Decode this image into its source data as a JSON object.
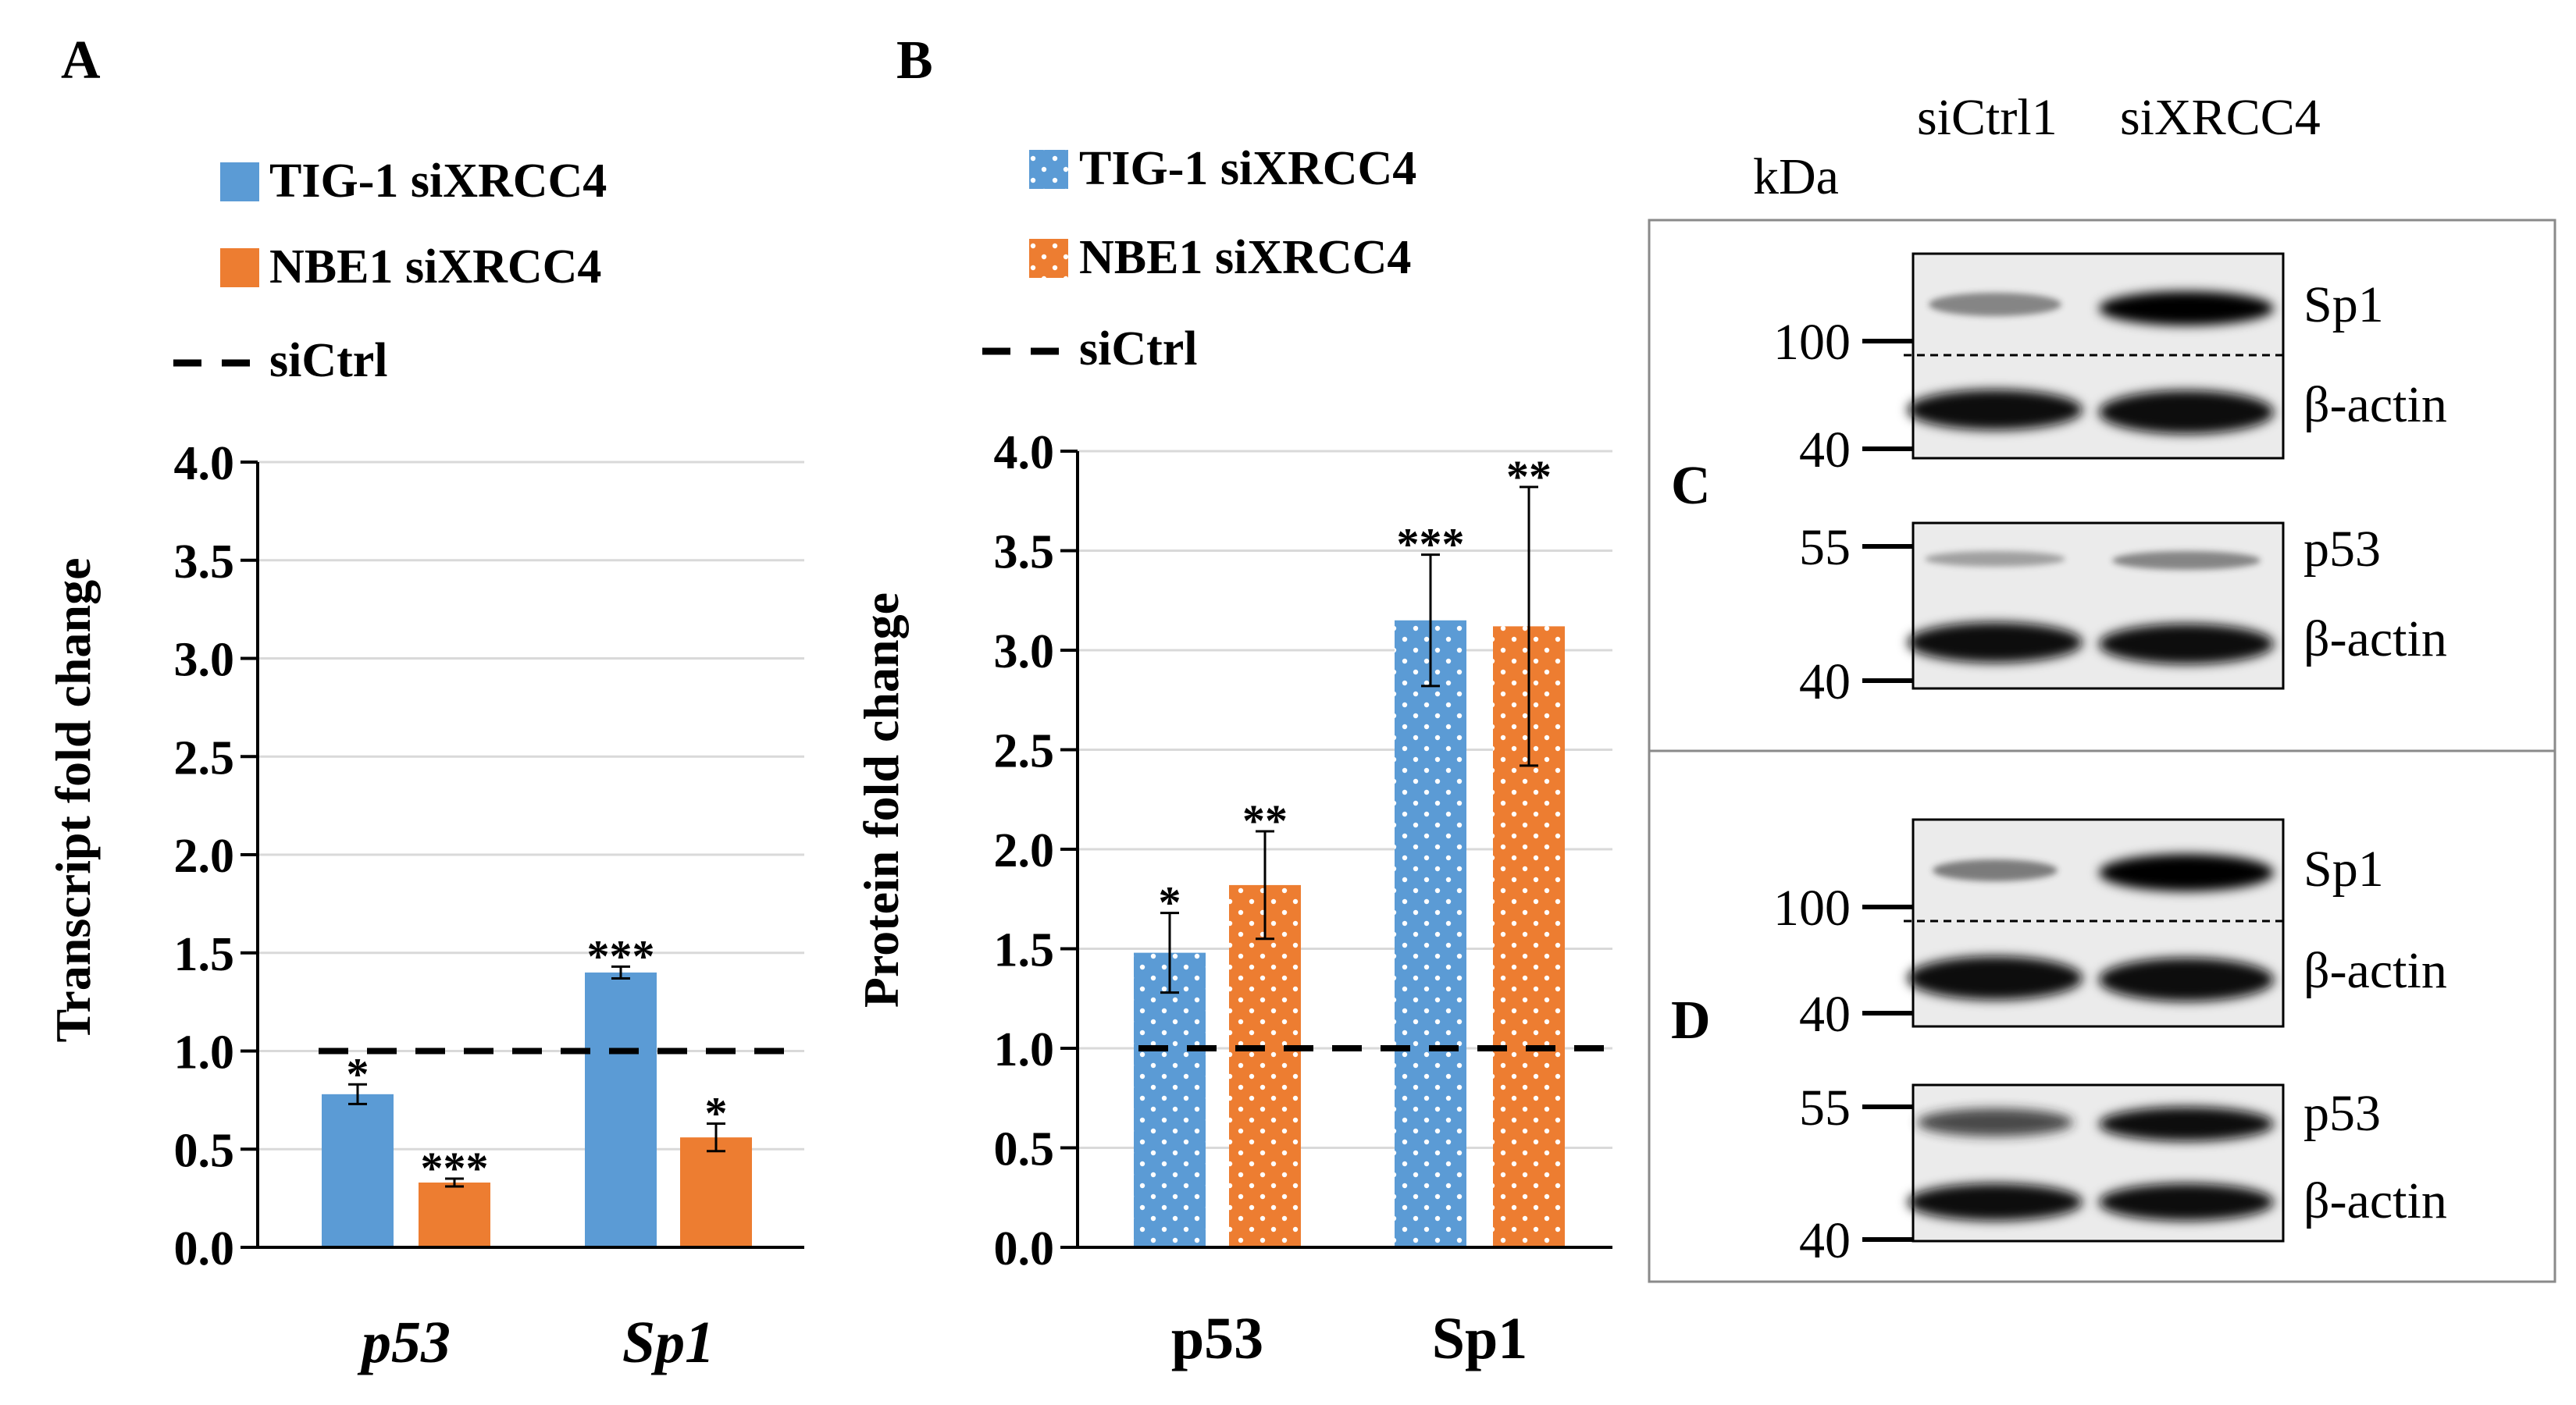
{
  "colors": {
    "tig": "#5b9bd5",
    "nbe": "#ed7d31",
    "grid": "#d9d9d9",
    "axis": "#000000",
    "blot_bg": "#e8e8e8",
    "band": "#111111"
  },
  "chart_data": [
    {
      "panel": "A",
      "type": "bar",
      "ylabel": "Transcript fold change",
      "ylim": [
        0,
        4
      ],
      "yticks": [
        "0.0",
        "0.5",
        "1.0",
        "1.5",
        "2.0",
        "2.5",
        "3.0",
        "3.5",
        "4.0"
      ],
      "categories": [
        "p53",
        "Sp1"
      ],
      "category_style": "italic",
      "pattern": "solid",
      "legend": {
        "placement": "top-left",
        "entries": [
          "TIG-1 siXRCC4",
          "NBE1 siXRCC4"
        ],
        "ref_label": "siCtrl"
      },
      "reference_line": 1.0,
      "series": [
        {
          "name": "TIG-1 siXRCC4",
          "color": "#5b9bd5",
          "values": [
            0.78,
            1.4
          ],
          "errors": [
            0.05,
            0.03
          ],
          "significance": [
            "*",
            "***"
          ]
        },
        {
          "name": "NBE1 siXRCC4",
          "color": "#ed7d31",
          "values": [
            0.33,
            0.56
          ],
          "errors": [
            0.02,
            0.07
          ],
          "significance": [
            "***",
            "*"
          ]
        }
      ]
    },
    {
      "panel": "B",
      "type": "bar",
      "ylabel": "Protein fold change",
      "ylim": [
        0,
        4
      ],
      "yticks": [
        "0.0",
        "0.5",
        "1.0",
        "1.5",
        "2.0",
        "2.5",
        "3.0",
        "3.5",
        "4.0"
      ],
      "categories": [
        "p53",
        "Sp1"
      ],
      "category_style": "bold",
      "pattern": "dotted",
      "legend": {
        "placement": "top-left",
        "entries": [
          "TIG-1 siXRCC4",
          "NBE1 siXRCC4"
        ],
        "ref_label": "siCtrl"
      },
      "reference_line": 1.0,
      "series": [
        {
          "name": "TIG-1 siXRCC4",
          "color": "#5b9bd5",
          "values": [
            1.48,
            3.15
          ],
          "errors": [
            0.2,
            0.33
          ],
          "significance": [
            "*",
            "***"
          ]
        },
        {
          "name": "NBE1 siXRCC4",
          "color": "#ed7d31",
          "values": [
            1.82,
            3.12
          ],
          "errors": [
            0.27,
            0.7
          ],
          "significance": [
            "**",
            "**"
          ]
        }
      ]
    }
  ],
  "panels": {
    "a": "A",
    "b": "B",
    "c": "C",
    "d": "D"
  },
  "blot": {
    "col_ctrl": "siCtrl1",
    "col_xrcc4": "siXRCC4",
    "kda": "kDa",
    "sp1": "Sp1",
    "actin": "β-actin",
    "p53": "p53",
    "m100": "100",
    "m40": "40",
    "m55": "55"
  }
}
